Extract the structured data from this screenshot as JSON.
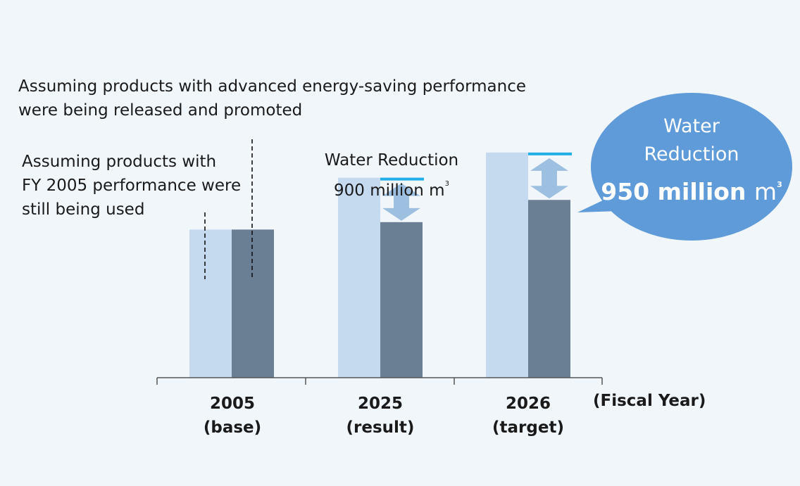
{
  "chart_data": {
    "type": "bar",
    "categories": [
      "2005",
      "2025",
      "2026"
    ],
    "category_sublabels": [
      "(base)",
      "(result)",
      "(target)"
    ],
    "series": [
      {
        "values": [
          100,
          135,
          152
        ],
        "color": "#c5d9ef"
      },
      {
        "values": [
          100,
          105,
          120
        ],
        "color": "#6b7f94"
      }
    ],
    "xlabel": "(Fiscal Year)",
    "ylabel": "",
    "ylim": [
      0,
      160
    ],
    "grid": false,
    "annotations": {
      "top_note": [
        "Assuming products with advanced energy-saving performance",
        "were being released and promoted"
      ],
      "left_note": [
        "Assuming products with",
        "FY 2005 performance were",
        "still being used"
      ],
      "reduction_2025": {
        "line1": "Water Reduction",
        "line2_value": "900 million m",
        "superscript": "3"
      },
      "bubble": {
        "line1": "Water",
        "line2": "Reduction",
        "value": "950 million",
        "unit": "m",
        "superscript": "3"
      }
    },
    "colors": {
      "bubble": "#5f9bd9",
      "reduction_line": "#22aee6",
      "arrow": "#9dbfe0",
      "axis": "#555555"
    }
  }
}
